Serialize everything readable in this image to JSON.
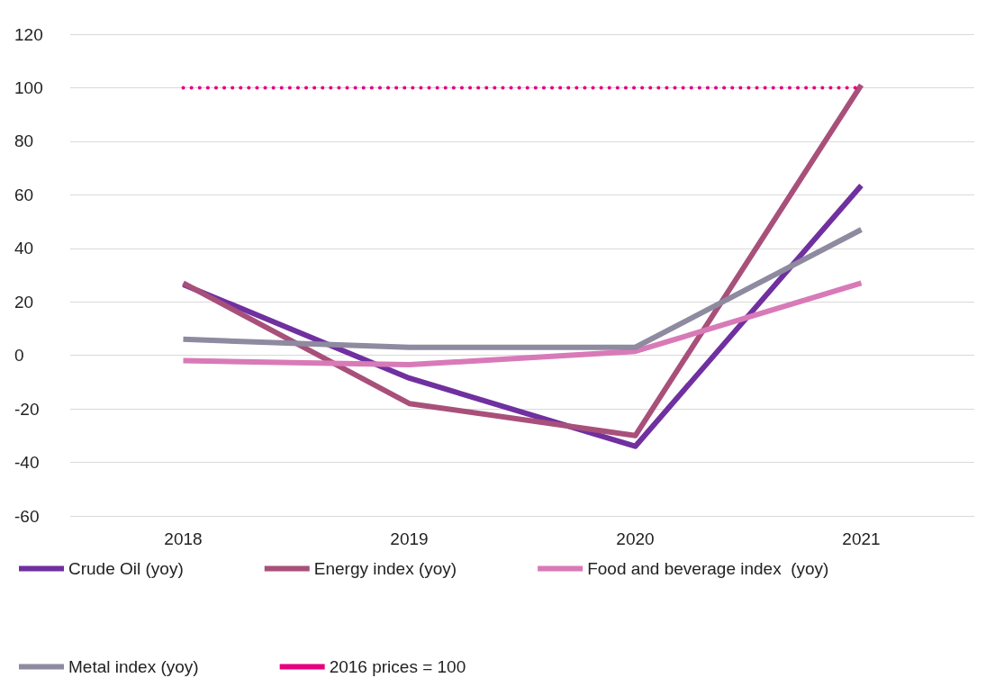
{
  "chart_data": {
    "type": "line",
    "categories": [
      "2018",
      "2019",
      "2020",
      "2021"
    ],
    "series": [
      {
        "name": "Crude Oil (yoy)",
        "color": "#7030a0",
        "values": [
          26.5,
          -8.5,
          -34,
          63.5
        ]
      },
      {
        "name": "Energy index (yoy)",
        "color": "#a8507a",
        "values": [
          27,
          -18,
          -30,
          101
        ]
      },
      {
        "name": "Food and beverage index  (yoy)",
        "color": "#d87ab8",
        "values": [
          -2,
          -3.5,
          1.5,
          27
        ]
      },
      {
        "name": "Metal index (yoy)",
        "color": "#8e8aa0",
        "values": [
          6,
          3,
          3,
          47
        ]
      },
      {
        "name": "2016 prices = 100",
        "color": "#e5007e",
        "values": [
          100,
          100,
          100,
          100
        ],
        "line_style": "dotted"
      }
    ],
    "ylim": [
      -60,
      120
    ],
    "yticks": [
      -60,
      -40,
      -20,
      0,
      20,
      40,
      60,
      80,
      100,
      120
    ],
    "grid": "y",
    "legend": "bottom",
    "marker": "none",
    "line_style": "solid"
  }
}
